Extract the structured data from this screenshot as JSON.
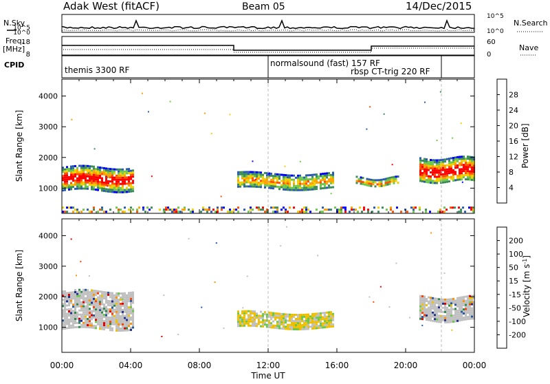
{
  "header": {
    "radar": "Adak West (fitACF)",
    "beam": "Beam 05",
    "date": "14/Dec/2015"
  },
  "left_labels": {
    "nsky": "N.Sky",
    "freq": "Freq.",
    "freq_unit": "[MHz]",
    "cpid": "CPID"
  },
  "right_labels": {
    "nsearch": "N.Search",
    "nave": "Nave"
  },
  "noise_axis": {
    "left_ticks": [
      "10^5",
      "10^0"
    ],
    "right_ticks": [
      "10^5",
      "10^0"
    ]
  },
  "freq_axis": {
    "left_ticks": [
      "18",
      "8"
    ],
    "right_ticks": [
      "60",
      "0"
    ]
  },
  "cpid_segments": [
    {
      "label": "themis 3300 RF",
      "start_hour": 0
    },
    {
      "label": "normalsound (fast) 157 RF",
      "start_hour": 12
    },
    {
      "label": "rbsp CT-trig 220 RF",
      "start_hour": 18
    }
  ],
  "chart_data": [
    {
      "type": "heatmap",
      "panel": "power",
      "xlabel": "",
      "ylabel": "Slant Range [km]",
      "xlim_hours": [
        0,
        24
      ],
      "ylim": [
        180,
        4550
      ],
      "yticks": [
        1000,
        2000,
        3000,
        4000
      ],
      "colorbar": {
        "label": "Power [dB]",
        "ticks": [
          4,
          8,
          12,
          16,
          20,
          24,
          28
        ],
        "range": [
          0,
          30
        ],
        "colors": [
          "#0000ff",
          "#2a5ab4",
          "#3c8c5a",
          "#6cc84a",
          "#f0d000",
          "#ffa000",
          "#ff5000",
          "#ff0000"
        ]
      },
      "echo_regions": [
        {
          "t0": 0.0,
          "t1": 4.2,
          "r0": 950,
          "r1": 1700,
          "note": "ionospheric scatter, strong"
        },
        {
          "t0": 10.2,
          "t1": 15.8,
          "r0": 1000,
          "r1": 1500,
          "note": "moderate scatter"
        },
        {
          "t0": 17.1,
          "t1": 19.6,
          "r0": 1100,
          "r1": 1350
        },
        {
          "t0": 20.8,
          "t1": 24.0,
          "r0": 1200,
          "r1": 2000,
          "note": "strong scatter"
        },
        {
          "t0": 0.0,
          "t1": 24.0,
          "r0": 200,
          "r1": 400,
          "note": "near-range ground scatter"
        }
      ]
    },
    {
      "type": "heatmap",
      "panel": "velocity",
      "xlabel": "Time UT",
      "ylabel": "Slant Range [km]",
      "xlim_hours": [
        0,
        24
      ],
      "ylim": [
        180,
        4550
      ],
      "yticks": [
        1000,
        2000,
        3000,
        4000
      ],
      "xticks": [
        "00:00",
        "04:00",
        "08:00",
        "12:00",
        "16:00",
        "20:00",
        "00:00"
      ],
      "colorbar": {
        "label": "Velocity [m s^-1]",
        "ticks": [
          200,
          100,
          50,
          15,
          -15,
          -50,
          -100,
          -200
        ],
        "colors": [
          "#203090",
          "#28589c",
          "#2f8a4a",
          "#6cc84a",
          "#c0c0c0",
          "#f0c000",
          "#ff9000",
          "#ff4000",
          "#e00000"
        ]
      },
      "echo_regions": [
        {
          "t0": 0.0,
          "t1": 4.2,
          "r0": 950,
          "r1": 2200,
          "note": "mostly ground scatter (grey)"
        },
        {
          "t0": 10.2,
          "t1": 15.8,
          "r0": 1000,
          "r1": 1500,
          "note": "mixed orange/green"
        },
        {
          "t0": 20.8,
          "t1": 24.0,
          "r0": 1200,
          "r1": 2000,
          "note": "grey with green"
        }
      ]
    }
  ],
  "colors": {
    "ground_scatter": "#c0c0c0",
    "axis": "#000000",
    "divider": "#bbbbbb"
  }
}
